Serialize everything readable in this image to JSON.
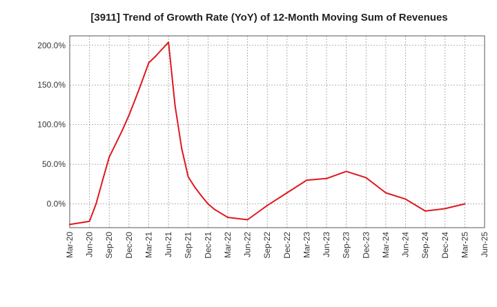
{
  "chart_data": {
    "type": "line",
    "title": "[3911]  Trend of Growth Rate (YoY) of 12-Month Moving Sum of Revenues",
    "xlabel": "",
    "ylabel": "",
    "x_ticks": [
      "Mar-20",
      "Jun-20",
      "Sep-20",
      "Dec-20",
      "Mar-21",
      "Jun-21",
      "Sep-21",
      "Dec-21",
      "Mar-22",
      "Jun-22",
      "Sep-22",
      "Dec-22",
      "Mar-23",
      "Jun-23",
      "Sep-23",
      "Dec-23",
      "Mar-24",
      "Jun-24",
      "Sep-24",
      "Dec-24",
      "Mar-25",
      "Jun-25"
    ],
    "y_ticks": [
      "200.0%",
      "150.0%",
      "100.0%",
      "50.0%",
      "0.0%"
    ],
    "y_tick_values": [
      200,
      150,
      100,
      50,
      0
    ],
    "ylim": [
      -30,
      212
    ],
    "grid": true,
    "legend": "none",
    "series": [
      {
        "color": "#e0161d",
        "x": [
          "Mar-20",
          "Jun-20",
          "Jul-20",
          "Aug-20",
          "Sep-20",
          "Oct-20",
          "Nov-20",
          "Dec-20",
          "Jan-21",
          "Feb-21",
          "Mar-21",
          "Apr-21",
          "May-21",
          "Jun-21",
          "Jul-21",
          "Aug-21",
          "Sep-21",
          "Oct-21",
          "Nov-21",
          "Dec-21",
          "Jan-22",
          "Feb-22",
          "Mar-22",
          "Jun-22",
          "Sep-22",
          "Dec-22",
          "Mar-23",
          "Jun-23",
          "Sep-23",
          "Dec-23",
          "Mar-24",
          "Jun-24",
          "Sep-24",
          "Dec-24",
          "Mar-25"
        ],
        "values": [
          -26,
          -22,
          0,
          30,
          59,
          76,
          93,
          112,
          133,
          155,
          178,
          186,
          195,
          204,
          124,
          70,
          34,
          21,
          10,
          0,
          -7,
          -12,
          -17,
          -20,
          -2,
          14,
          30,
          32,
          41,
          33,
          14,
          6,
          -9,
          -6,
          0
        ]
      }
    ]
  }
}
